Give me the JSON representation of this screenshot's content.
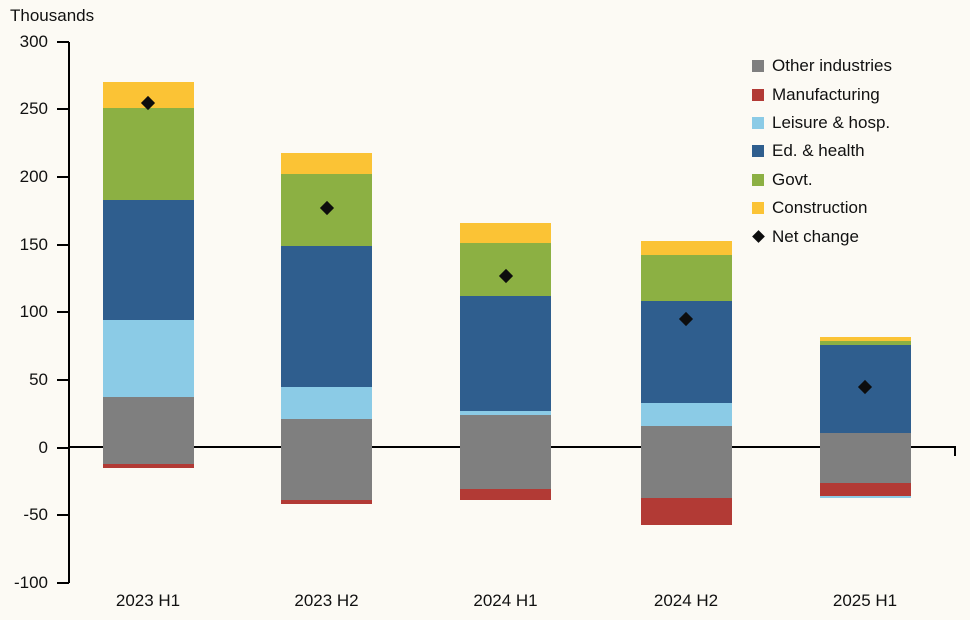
{
  "title": "Thousands",
  "colors": {
    "background": "#fcfaf4",
    "text": "#111111",
    "axis": "#000000"
  },
  "series": {
    "other": {
      "label": "Other industries",
      "color": "#7f7f7f"
    },
    "manufacturing": {
      "label": "Manufacturing",
      "color": "#b23a35"
    },
    "leisure": {
      "label": "Leisure & hosp.",
      "color": "#8bcbe6"
    },
    "ed_health": {
      "label": "Ed. & health",
      "color": "#2f5e8e"
    },
    "govt": {
      "label": "Govt.",
      "color": "#8cb043"
    },
    "construction": {
      "label": "Construction",
      "color": "#fbc335"
    },
    "net": {
      "label": "Net change",
      "color": "#0d0d0d"
    }
  },
  "chart_data": {
    "type": "bar",
    "stacked": true,
    "title": "Thousands",
    "xlabel": "",
    "ylabel": "Thousands",
    "grid": false,
    "legend_position": "top-right",
    "categories": [
      "2023 H1",
      "2023 H2",
      "2024 H1",
      "2024 H2",
      "2025 H1"
    ],
    "y_axis": {
      "min": -100,
      "max": 300,
      "step": 50,
      "ticks": [
        300,
        250,
        200,
        150,
        100,
        50,
        0,
        -50,
        -100
      ]
    },
    "bars": [
      {
        "category": "2023 H1",
        "segments": [
          {
            "series": "manufacturing",
            "from": -15,
            "to": -12
          },
          {
            "series": "other",
            "from": -12,
            "to": 37
          },
          {
            "series": "leisure",
            "from": 37,
            "to": 94
          },
          {
            "series": "ed_health",
            "from": 94,
            "to": 183
          },
          {
            "series": "govt",
            "from": 183,
            "to": 251
          },
          {
            "series": "construction",
            "from": 251,
            "to": 270
          }
        ],
        "net_change": 255
      },
      {
        "category": "2023 H2",
        "segments": [
          {
            "series": "manufacturing",
            "from": -42,
            "to": -39
          },
          {
            "series": "other",
            "from": -39,
            "to": 21
          },
          {
            "series": "leisure",
            "from": 21,
            "to": 45
          },
          {
            "series": "ed_health",
            "from": 45,
            "to": 149
          },
          {
            "series": "govt",
            "from": 149,
            "to": 202
          },
          {
            "series": "construction",
            "from": 202,
            "to": 218
          }
        ],
        "net_change": 177
      },
      {
        "category": "2024 H1",
        "segments": [
          {
            "series": "manufacturing",
            "from": -39,
            "to": -31
          },
          {
            "series": "other",
            "from": -31,
            "to": 24
          },
          {
            "series": "leisure",
            "from": 24,
            "to": 27
          },
          {
            "series": "ed_health",
            "from": 27,
            "to": 112
          },
          {
            "series": "govt",
            "from": 112,
            "to": 151
          },
          {
            "series": "construction",
            "from": 151,
            "to": 166
          }
        ],
        "net_change": 127
      },
      {
        "category": "2024 H2",
        "segments": [
          {
            "series": "manufacturing",
            "from": -57,
            "to": -37
          },
          {
            "series": "other",
            "from": -37,
            "to": 16
          },
          {
            "series": "leisure",
            "from": 16,
            "to": 33
          },
          {
            "series": "ed_health",
            "from": 33,
            "to": 108
          },
          {
            "series": "govt",
            "from": 108,
            "to": 142
          },
          {
            "series": "construction",
            "from": 142,
            "to": 153
          }
        ],
        "net_change": 95
      },
      {
        "category": "2025 H1",
        "segments": [
          {
            "series": "leisure",
            "from": -37.5,
            "to": -36
          },
          {
            "series": "manufacturing",
            "from": -36,
            "to": -26
          },
          {
            "series": "other",
            "from": -26,
            "to": 11
          },
          {
            "series": "ed_health",
            "from": 11,
            "to": 76
          },
          {
            "series": "govt",
            "from": 76,
            "to": 79
          },
          {
            "series": "construction",
            "from": 79,
            "to": 82
          }
        ],
        "net_change": 45
      }
    ],
    "net_change_series": {
      "name": "Net change",
      "values": [
        255,
        177,
        127,
        95,
        45
      ]
    }
  },
  "legend_order": [
    "other",
    "manufacturing",
    "leisure",
    "ed_health",
    "govt",
    "construction",
    "net"
  ]
}
